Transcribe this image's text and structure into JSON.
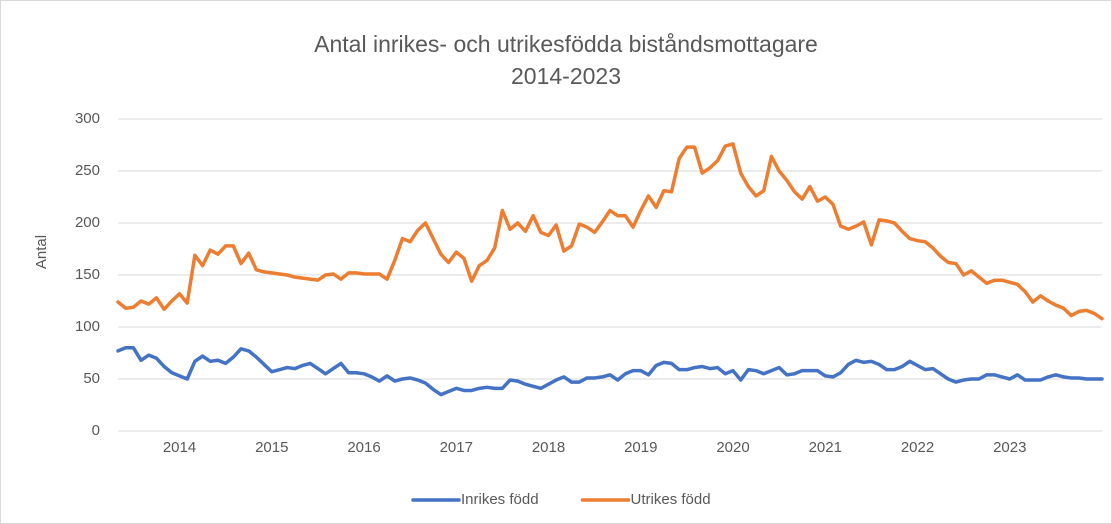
{
  "chart_data": {
    "type": "line",
    "title": [
      "Antal inrikes- och utrikesfödda biståndsmottagare",
      "2014-2023"
    ],
    "y_label": "Antal",
    "categories": [
      null,
      null,
      null,
      null,
      null,
      null,
      null,
      null,
      "2014",
      null,
      null,
      null,
      null,
      null,
      null,
      null,
      null,
      null,
      null,
      null,
      "2015",
      null,
      null,
      null,
      null,
      null,
      null,
      null,
      null,
      null,
      null,
      null,
      "2016",
      null,
      null,
      null,
      null,
      null,
      null,
      null,
      null,
      null,
      null,
      null,
      "2017",
      null,
      null,
      null,
      null,
      null,
      null,
      null,
      null,
      null,
      null,
      null,
      "2018",
      null,
      null,
      null,
      null,
      null,
      null,
      null,
      null,
      null,
      null,
      null,
      "2019",
      null,
      null,
      null,
      null,
      null,
      null,
      null,
      null,
      null,
      null,
      null,
      "2020",
      null,
      null,
      null,
      null,
      null,
      null,
      null,
      null,
      null,
      null,
      null,
      "2021",
      null,
      null,
      null,
      null,
      null,
      null,
      null,
      null,
      null,
      null,
      null,
      "2022",
      null,
      null,
      null,
      null,
      null,
      null,
      null,
      null,
      null,
      null,
      null,
      "2023",
      null,
      null,
      null,
      null,
      null,
      null,
      null,
      null,
      null,
      null,
      null,
      null
    ],
    "series": [
      {
        "name": "Inrikes född",
        "color": "#4472c4",
        "values": [
          77,
          80,
          80,
          68,
          73,
          70,
          62,
          56,
          53,
          50,
          67,
          72,
          67,
          68,
          65,
          71,
          79,
          77,
          71,
          64,
          57,
          59,
          61,
          60,
          63,
          65,
          60,
          55,
          60,
          65,
          56,
          56,
          55,
          52,
          48,
          53,
          48,
          50,
          51,
          49,
          46,
          40,
          35,
          38,
          41,
          39,
          39,
          41,
          42,
          41,
          41,
          49,
          48,
          45,
          43,
          41,
          45,
          49,
          52,
          47,
          47,
          51,
          51,
          52,
          54,
          49,
          55,
          58,
          58,
          54,
          63,
          66,
          65,
          59,
          59,
          61,
          62,
          60,
          61,
          55,
          58,
          49,
          59,
          58,
          55,
          58,
          61,
          54,
          55,
          58,
          58,
          58,
          53,
          52,
          56,
          64,
          68,
          66,
          67,
          64,
          59,
          59,
          62,
          67,
          63,
          59,
          60,
          55,
          50,
          47,
          49,
          50,
          50,
          54,
          54,
          52,
          50,
          54,
          49,
          49,
          49,
          52,
          54,
          52,
          51,
          51,
          50,
          50,
          50
        ]
      },
      {
        "name": "Utrikes född",
        "color": "#ed7d31",
        "values": [
          124,
          118,
          119,
          125,
          122,
          128,
          117,
          125,
          132,
          123,
          169,
          159,
          174,
          170,
          178,
          178,
          161,
          171,
          155,
          153,
          152,
          151,
          150,
          148,
          147,
          146,
          145,
          150,
          151,
          146,
          152,
          152,
          151,
          151,
          151,
          146,
          164,
          185,
          182,
          193,
          200,
          185,
          170,
          162,
          172,
          166,
          144,
          159,
          164,
          176,
          212,
          194,
          200,
          192,
          207,
          191,
          188,
          198,
          173,
          178,
          199,
          196,
          191,
          201,
          212,
          207,
          207,
          196,
          212,
          226,
          215,
          231,
          230,
          262,
          273,
          273,
          248,
          253,
          260,
          274,
          276,
          248,
          235,
          226,
          231,
          264,
          250,
          241,
          230,
          223,
          235,
          221,
          225,
          218,
          197,
          194,
          197,
          201,
          179,
          203,
          202,
          200,
          192,
          185,
          183,
          182,
          176,
          168,
          162,
          161,
          150,
          154,
          148,
          142,
          145,
          145,
          143,
          141,
          134,
          124,
          130,
          125,
          121,
          118,
          111,
          115,
          116,
          113,
          108
        ]
      }
    ],
    "ylim": [
      0,
      300
    ],
    "yticks": [
      0,
      50,
      100,
      150,
      200,
      250,
      300
    ],
    "grid": true,
    "legend": "bottom"
  }
}
